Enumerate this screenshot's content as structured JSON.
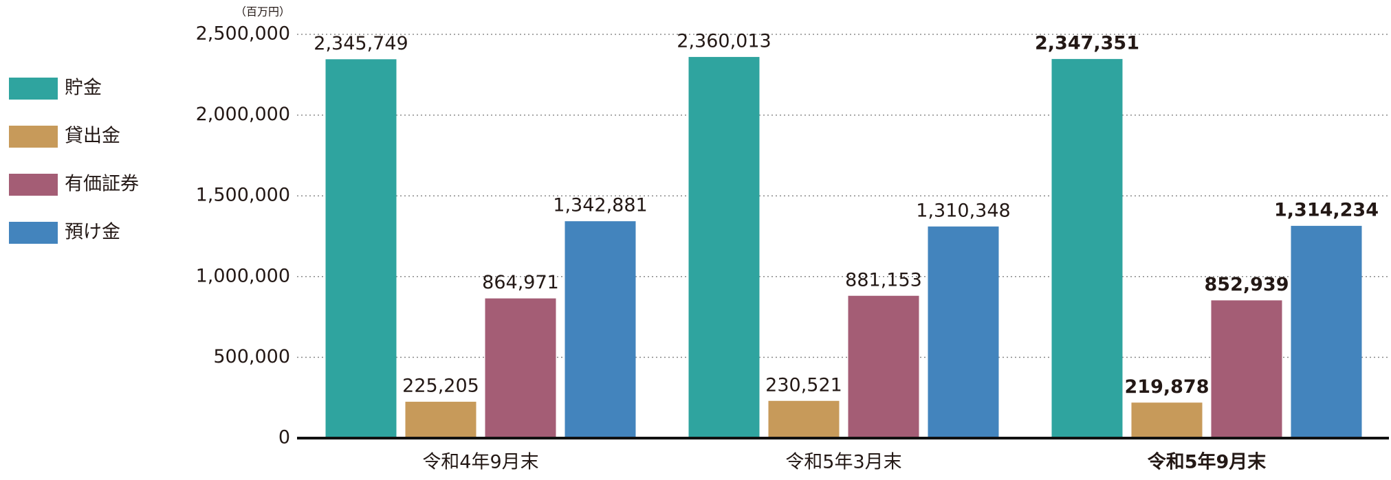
{
  "chart_data": {
    "type": "bar",
    "unit": "（百万円）",
    "categories": [
      "令和4年9月末",
      "令和5年3月末",
      "令和5年9月末"
    ],
    "series": [
      {
        "name": "貯金",
        "color": "#2fa49f",
        "values": [
          2345749,
          2360013,
          2347351
        ],
        "value_labels": [
          "2,345,749",
          "2,360,013",
          "2,347,351"
        ]
      },
      {
        "name": "貸出金",
        "color": "#c79a5a",
        "values": [
          225205,
          230521,
          219878
        ],
        "value_labels": [
          "225,205",
          "230,521",
          "219,878"
        ]
      },
      {
        "name": "有価証券",
        "color": "#a45d75",
        "values": [
          864971,
          881153,
          852939
        ],
        "value_labels": [
          "864,971",
          "881,153",
          "852,939"
        ]
      },
      {
        "name": "預け金",
        "color": "#4384bd",
        "values": [
          1342881,
          1310348,
          1314234
        ],
        "value_labels": [
          "1,342,881",
          "1,310,348",
          "1,314,234"
        ]
      }
    ],
    "ylim": [
      0,
      2500000
    ],
    "yticks": [
      0,
      {
        "value": 500000,
        "label": "500,000"
      },
      {
        "value": 1000000,
        "label": "1,000,000"
      },
      {
        "value": 1500000,
        "label": "1,500,000"
      },
      {
        "value": 2000000,
        "label": "2,000,000"
      },
      {
        "value": 2500000,
        "label": "2,500,000"
      }
    ],
    "grid": true
  }
}
